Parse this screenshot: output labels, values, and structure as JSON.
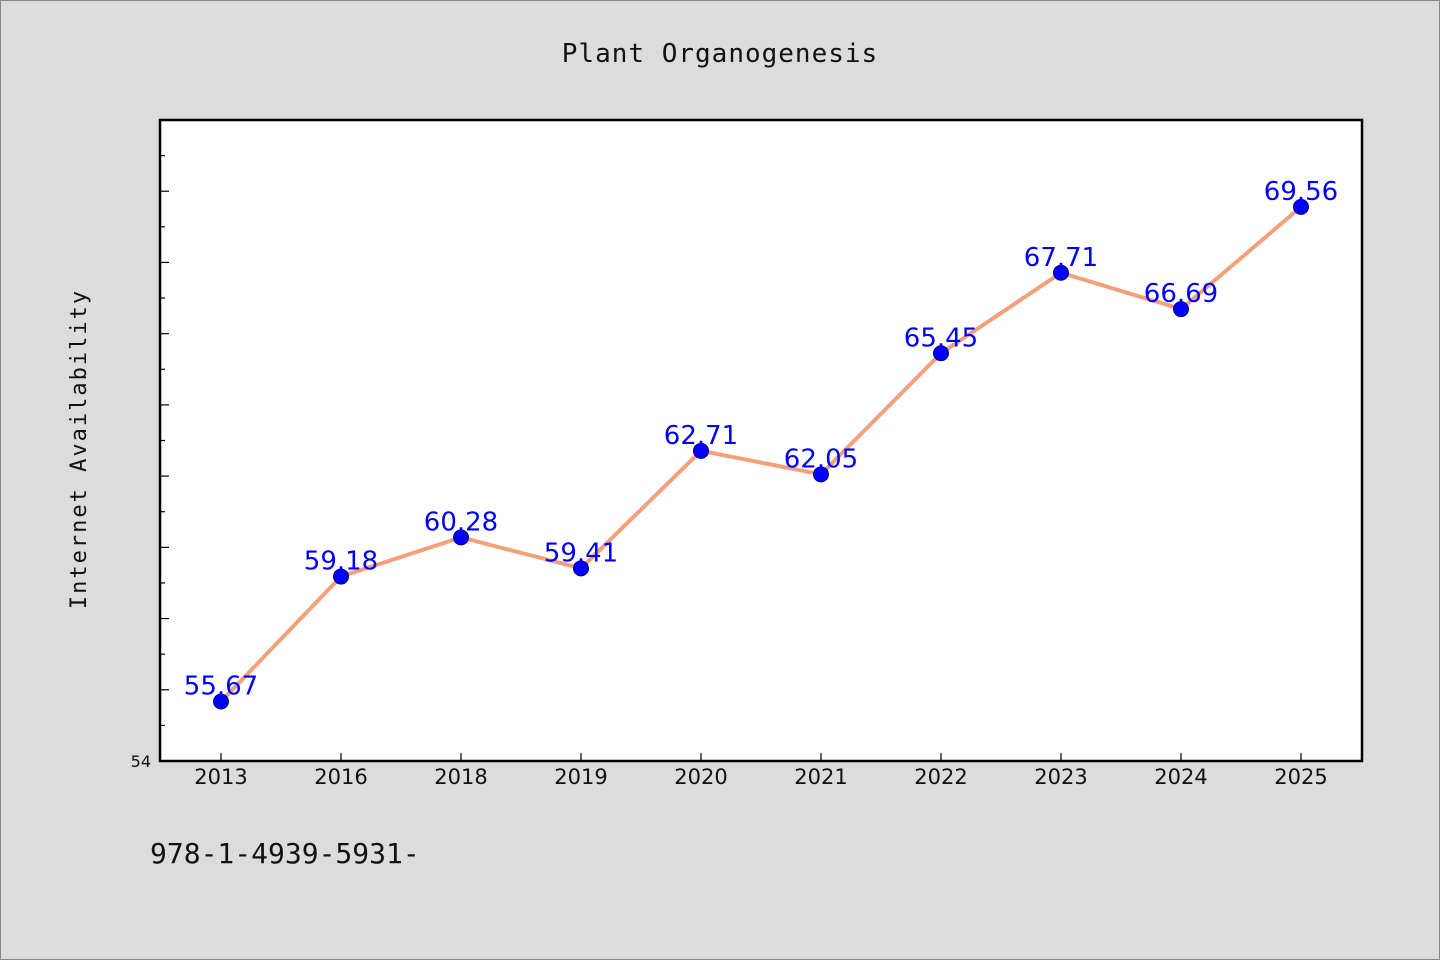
{
  "chart_data": {
    "type": "line",
    "title": "Plant Organogenesis",
    "xlabel": "",
    "ylabel": "Internet Availability",
    "categories": [
      "2013",
      "2016",
      "2018",
      "2019",
      "2020",
      "2021",
      "2022",
      "2023",
      "2024",
      "2025"
    ],
    "series": [
      {
        "values": [
          55.67,
          59.18,
          60.28,
          59.41,
          62.71,
          62.05,
          65.45,
          67.71,
          66.69,
          69.56
        ],
        "data_labels": [
          "55.67",
          "59.18",
          "60.28",
          "59.41",
          "62.71",
          "62.05",
          "65.45",
          "67.71",
          "66.69",
          "69.56"
        ]
      }
    ],
    "ylim": [
      54,
      72
    ],
    "y_tick_min_label": "54",
    "grid": false,
    "legend": "none",
    "colors": {
      "line": "#f4a07c",
      "marker": "#0000ff",
      "data_label": "#0000ff",
      "plot_background": "#ffffff",
      "figure_background": "#dcdcdc"
    }
  },
  "footer_text": "978-1-4939-5931-"
}
